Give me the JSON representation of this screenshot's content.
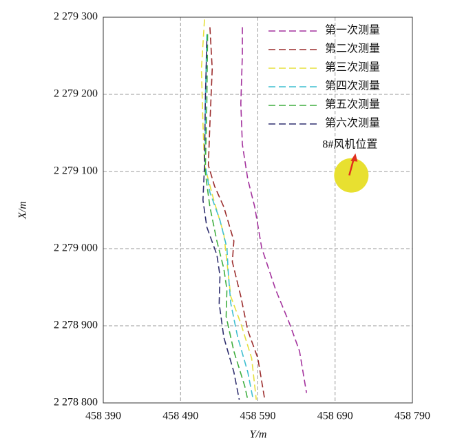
{
  "chart_data": {
    "type": "line",
    "xlabel": "Y/m",
    "ylabel": "X/m",
    "xlim": [
      458390,
      458790
    ],
    "xticks": [
      {
        "value": 458390,
        "label": "458 390"
      },
      {
        "value": 458490,
        "label": "458 490"
      },
      {
        "value": 458590,
        "label": "458 590"
      },
      {
        "value": 458690,
        "label": "458 690"
      },
      {
        "value": 458790,
        "label": "458 790"
      }
    ],
    "ylim": [
      2278800,
      2279300
    ],
    "yticks": [
      {
        "value": 2278800,
        "label": "2 278 800"
      },
      {
        "value": 2278900,
        "label": "2 278 900"
      },
      {
        "value": 2279000,
        "label": "2 279 000"
      },
      {
        "value": 2279100,
        "label": "2 279 100"
      },
      {
        "value": 2279200,
        "label": "2 279 200"
      },
      {
        "value": 2279300,
        "label": "2 279 300"
      }
    ],
    "grid": true,
    "legend": "top-right",
    "series": [
      {
        "name": "第一次测量",
        "color": "#a3329d",
        "x": [
          458570,
          458570,
          458568,
          458570,
          458577,
          458586,
          458595,
          458613,
          458631,
          458644,
          458653
        ],
        "values": [
          2279287,
          2279251,
          2279188,
          2279135,
          2279090,
          2279054,
          2279001,
          2278947,
          2278903,
          2278867,
          2278813
        ]
      },
      {
        "name": "第二次测量",
        "color": "#9b2c2c",
        "x": [
          458528,
          458531,
          458528,
          458526,
          458534,
          458546,
          458559,
          458557,
          458568,
          458577,
          458590,
          458599
        ],
        "values": [
          2279287,
          2279233,
          2279162,
          2279108,
          2279081,
          2279054,
          2279010,
          2278983,
          2278938,
          2278894,
          2278858,
          2278804
        ]
      },
      {
        "name": "第三次测量",
        "color": "#e6e03c",
        "x": [
          458521,
          458517,
          458519,
          458521,
          458533,
          458546,
          458550,
          458555,
          458568,
          458582,
          458588
        ],
        "values": [
          2279297,
          2279233,
          2279162,
          2279108,
          2279063,
          2279019,
          2278983,
          2278938,
          2278903,
          2278858,
          2278804
        ]
      },
      {
        "name": "第四次测量",
        "color": "#3fbfd0",
        "x": [
          458524,
          458522,
          458522,
          458528,
          458541,
          458550,
          458552,
          458555,
          458564,
          458577,
          458584
        ],
        "values": [
          2279278,
          2279188,
          2279108,
          2279073,
          2279037,
          2279001,
          2278965,
          2278929,
          2278885,
          2278840,
          2278804
        ]
      },
      {
        "name": "第五次测量",
        "color": "#3fae3f",
        "x": [
          458525,
          458524,
          458522,
          458528,
          458537,
          458546,
          458550,
          458549,
          458559,
          458573,
          458577
        ],
        "values": [
          2279278,
          2279188,
          2279099,
          2279054,
          2279010,
          2278974,
          2278947,
          2278912,
          2278867,
          2278822,
          2278804
        ]
      },
      {
        "name": "第六次测量",
        "color": "#2e2e6e",
        "x": [
          458524,
          458522,
          458521,
          458519,
          458524,
          458537,
          458541,
          458540,
          458546,
          458559,
          458566
        ],
        "values": [
          2279269,
          2279188,
          2279108,
          2279063,
          2279028,
          2278992,
          2278965,
          2278929,
          2278885,
          2278840,
          2278804
        ]
      }
    ],
    "annotation": {
      "text": "8#风机位置",
      "x": 458711,
      "y": 2279095,
      "color": "#e8e030"
    }
  }
}
